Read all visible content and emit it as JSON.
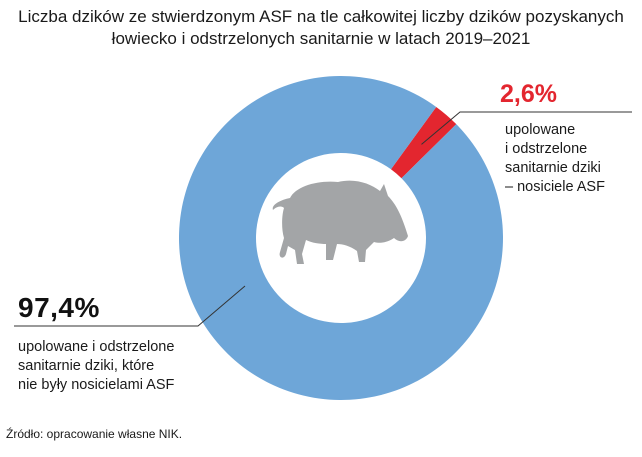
{
  "title": {
    "line1": "Liczba dzików ze stwierdzonym ASF na tle całkowitej liczby dzików pozyskanych",
    "line2": "łowiecko i odstrzelonych sanitarnie w latach 2019–2021"
  },
  "chart_data": {
    "type": "pie",
    "donut": true,
    "title": "Liczba dzików ze stwierdzonym ASF na tle całkowitej liczby dzików pozyskanych łowiecko i odstrzelonych sanitarnie w latach 2019–2021",
    "slices": [
      {
        "value_label": "2,6%",
        "value": 2.6,
        "color": "#e3262f",
        "label_lines": [
          "upolowane",
          "i odstrzelone",
          "sanitarnie dziki",
          "– nosiciele ASF"
        ]
      },
      {
        "value_label": "97,4%",
        "value": 97.4,
        "color": "#6ea6d8",
        "label_lines": [
          "upolowane i odstrzelone",
          "sanitarnie dziki, które",
          "nie były nosicielami ASF"
        ]
      }
    ],
    "center_icon": "wild-boar-icon"
  },
  "source": "Źródło: opracowanie własne NIK."
}
